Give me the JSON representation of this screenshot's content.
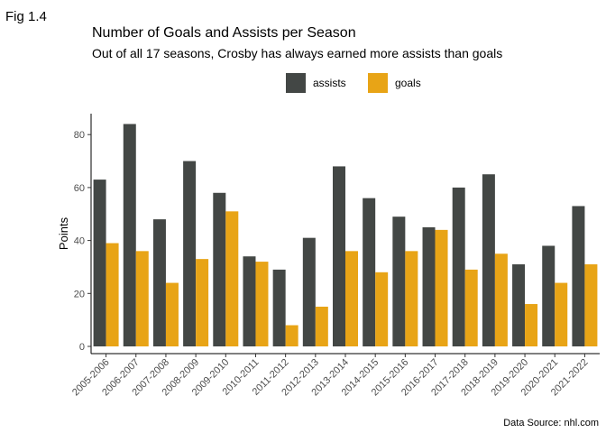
{
  "figure_label": "Fig 1.4",
  "caption": "Data Source: nhl.com",
  "chart_data": {
    "type": "bar",
    "title": "Number of Goals and Assists per Season",
    "subtitle": "Out of all 17 seasons, Crosby has always earned more assists than goals",
    "xlabel": "",
    "ylabel": "Points",
    "ylim": [
      0,
      88
    ],
    "yticks": [
      0,
      20,
      40,
      60,
      80
    ],
    "grid": false,
    "legend_position": "top",
    "categories": [
      "2005-2006",
      "2006-2007",
      "2007-2008",
      "2008-2009",
      "2009-2010",
      "2010-2011",
      "2011-2012",
      "2012-2013",
      "2013-2014",
      "2014-2015",
      "2015-2016",
      "2016-2017",
      "2017-2018",
      "2018-2019",
      "2019-2020",
      "2020-2021",
      "2021-2022"
    ],
    "series": [
      {
        "name": "assists",
        "color": "#434745",
        "values": [
          63,
          84,
          48,
          70,
          58,
          34,
          29,
          41,
          68,
          56,
          49,
          45,
          60,
          65,
          31,
          38,
          53
        ]
      },
      {
        "name": "goals",
        "color": "#e8a416",
        "values": [
          39,
          36,
          24,
          33,
          51,
          32,
          8,
          15,
          36,
          28,
          36,
          44,
          29,
          35,
          16,
          24,
          31
        ]
      }
    ]
  }
}
